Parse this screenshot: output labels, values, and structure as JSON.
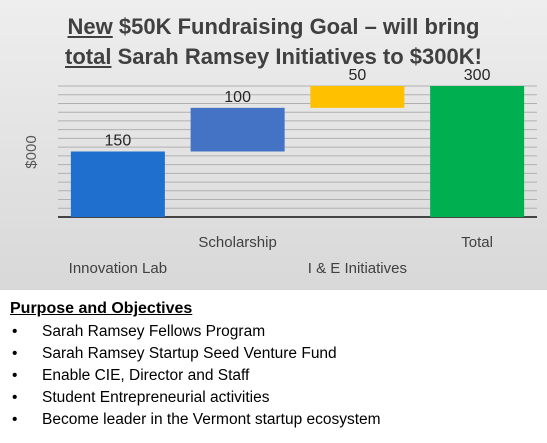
{
  "header": {
    "title_line1_underlined": "New",
    "title_line1_rest": " $50K Fundraising Goal – will bring",
    "title_line2_underlined": "total",
    "title_line2_rest": " Sarah Ramsey Initiatives to $300K!"
  },
  "chart_data": {
    "type": "bar",
    "subtype": "waterfall",
    "ylabel": "$000",
    "ylim": [
      0,
      300
    ],
    "grid": true,
    "categories": [
      "Innovation Lab",
      "Scholarship",
      "I & E Initiatives",
      "Total"
    ],
    "values": [
      150,
      100,
      50,
      300
    ],
    "bases": [
      0,
      150,
      250,
      0
    ],
    "data_labels": [
      "150",
      "100",
      "50",
      "300"
    ],
    "colors": [
      "#1f6fce",
      "#4472c4",
      "#ffc000",
      "#00b050"
    ]
  },
  "objectives": {
    "title": "Purpose and Objectives",
    "bullet": "•",
    "items": [
      "Sarah Ramsey Fellows Program",
      "Sarah Ramsey Startup Seed Venture Fund",
      "Enable CIE, Director and Staff",
      "Student Entrepreneurial activities",
      "Become leader in the Vermont startup ecosystem"
    ]
  }
}
